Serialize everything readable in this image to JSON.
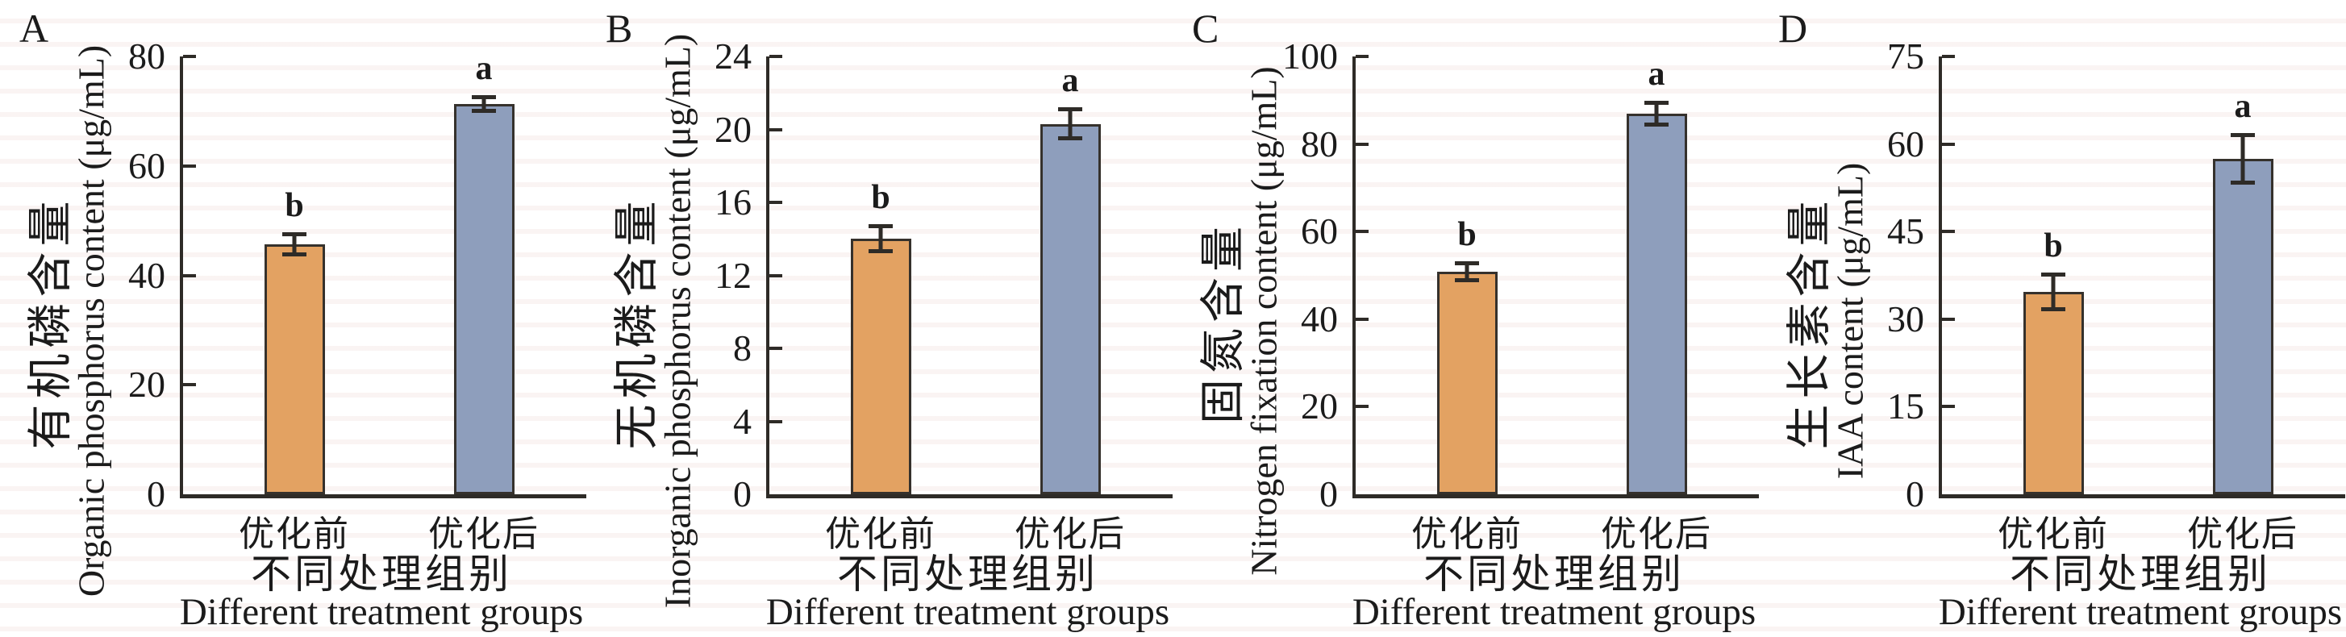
{
  "figure": {
    "background": "#ffffff",
    "description_visible_text_only": true
  },
  "colors": {
    "bar_before": "#E3A262",
    "bar_after": "#8E9EBC",
    "outline": "#35312c",
    "axis": "#2e2b27",
    "text": "#1b1b1b"
  },
  "chart_data": [
    {
      "type": "bar",
      "panel_letter": "A",
      "ylabel_zh": "有机磷含量",
      "ylabel_en": "Organic phosphorus content (μg/mL)",
      "xlabel_zh": "不同处理组别",
      "xlabel_en": "Different treatment groups",
      "categories": [
        "优化前",
        "优化后"
      ],
      "values": [
        45.7,
        71.3
      ],
      "errors": [
        2.2,
        1.6
      ],
      "sig_letters": [
        "b",
        "a"
      ],
      "ylim": [
        0,
        80
      ],
      "ytick_step": 20,
      "bar_colors": [
        "#E3A262",
        "#8E9EBC"
      ],
      "grid": false,
      "legend": "none"
    },
    {
      "type": "bar",
      "panel_letter": "B",
      "ylabel_zh": "无机磷含量",
      "ylabel_en": "Inorganic phosphorus content (μg/mL)",
      "xlabel_zh": "不同处理组别",
      "xlabel_en": "Different treatment groups",
      "categories": [
        "优化前",
        "优化后"
      ],
      "values": [
        14.0,
        20.3
      ],
      "errors": [
        0.8,
        0.9
      ],
      "sig_letters": [
        "b",
        "a"
      ],
      "ylim": [
        0,
        24
      ],
      "ytick_step": 4,
      "bar_colors": [
        "#E3A262",
        "#8E9EBC"
      ],
      "grid": false,
      "legend": "none"
    },
    {
      "type": "bar",
      "panel_letter": "C",
      "ylabel_zh": "固氮含量",
      "ylabel_en": "Nitrogen fixation content (μg/mL)",
      "xlabel_zh": "不同处理组别",
      "xlabel_en": "Different treatment groups",
      "categories": [
        "优化前",
        "优化后"
      ],
      "values": [
        50.8,
        86.9
      ],
      "errors": [
        2.4,
        3.0
      ],
      "sig_letters": [
        "b",
        "a"
      ],
      "ylim": [
        0,
        100
      ],
      "ytick_step": 20,
      "bar_colors": [
        "#E3A262",
        "#8E9EBC"
      ],
      "grid": false,
      "legend": "none"
    },
    {
      "type": "bar",
      "panel_letter": "D",
      "ylabel_zh": "生长素含量",
      "ylabel_en": "IAA content (μg/mL)",
      "xlabel_zh": "不同处理组别",
      "xlabel_en": "Different treatment groups",
      "categories": [
        "优化前",
        "优化后"
      ],
      "values": [
        34.7,
        57.5
      ],
      "errors": [
        3.3,
        4.4
      ],
      "sig_letters": [
        "b",
        "a"
      ],
      "ylim": [
        0,
        75
      ],
      "ytick_step": 15,
      "bar_colors": [
        "#E3A262",
        "#8E9EBC"
      ],
      "grid": false,
      "legend": "none"
    }
  ]
}
